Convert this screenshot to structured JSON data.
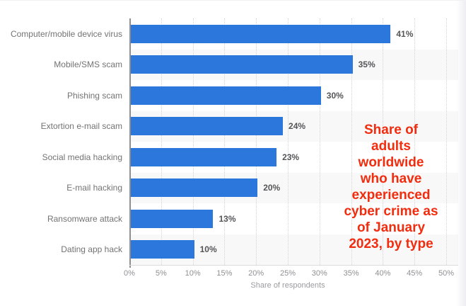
{
  "page": {
    "background": "#ffffff"
  },
  "chart_data": {
    "type": "bar",
    "orientation": "horizontal",
    "title_annotation": "Share of adults worldwide who have experienced cyber crime as of January 2023, by type",
    "categories": [
      "Computer/mobile device virus",
      "Mobile/SMS scam",
      "Phishing scam",
      "Extortion e-mail scam",
      "Social media hacking",
      "E-mail hacking",
      "Ransomware attack",
      "Dating app hack"
    ],
    "values": [
      41,
      35,
      30,
      24,
      23,
      20,
      13,
      10
    ],
    "value_labels": [
      "41%",
      "35%",
      "30%",
      "24%",
      "23%",
      "20%",
      "13%",
      "10%"
    ],
    "xlabel": "Share of respondents",
    "ylabel": "",
    "xlim": [
      0,
      50
    ],
    "x_ticks": [
      "0%",
      "5%",
      "10%",
      "15%",
      "20%",
      "25%",
      "30%",
      "35%",
      "40%",
      "45%",
      "50%"
    ],
    "grid": "vertical-dotted",
    "legend": "none",
    "bar_color": "#2c77dc",
    "band_color": "#f8f8f9"
  },
  "annotation": {
    "text": "Share of\nadults\nworldwide\nwho have\nexperienced\ncyber crime as\nof January\n2023, by type",
    "color": "#f22c0e"
  }
}
